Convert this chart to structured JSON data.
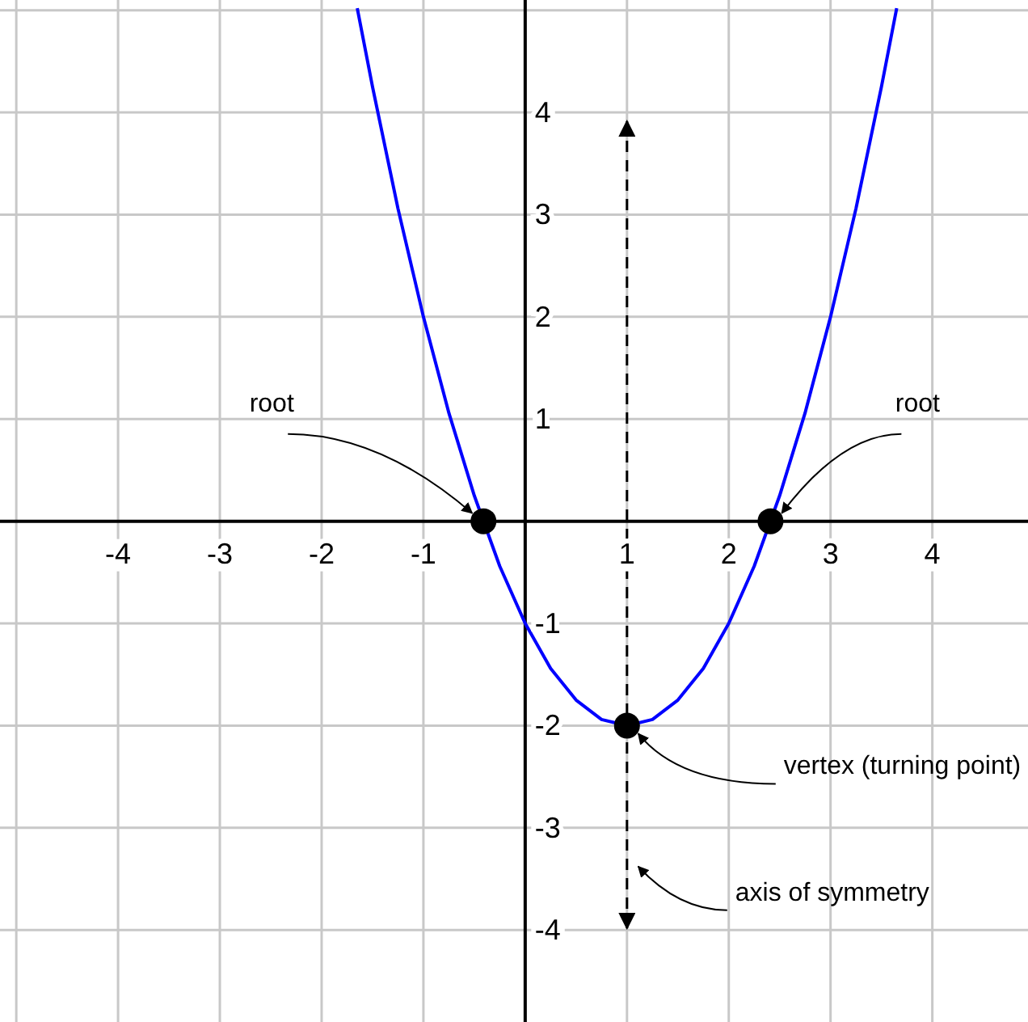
{
  "chart_data": {
    "type": "line",
    "xlim": [
      -5.16,
      4.94
    ],
    "ylim": [
      -4.9,
      5.1
    ],
    "xticks": [
      {
        "value": -5,
        "label": null
      },
      -4,
      -3,
      -2,
      -1,
      {
        "value": 0,
        "label": null
      },
      1,
      2,
      3,
      4
    ],
    "yticks": [
      -4,
      -3,
      -2,
      -1,
      {
        "value": 0,
        "label": null
      },
      1,
      2,
      3,
      4,
      {
        "value": 5,
        "label": null
      }
    ],
    "grid": true,
    "series": [
      {
        "color": "#0000ff",
        "marker": "none",
        "x": [
          -1.65,
          -1.5,
          -1.25,
          -1,
          -0.75,
          -0.5,
          -0.25,
          0,
          0.25,
          0.5,
          0.75,
          1,
          1.25,
          1.5,
          1.75,
          2,
          2.25,
          2.5,
          2.75,
          3,
          3.25,
          3.5,
          3.65
        ],
        "values": [
          5.02,
          4.25,
          3.06,
          2,
          1.06,
          0.25,
          -0.44,
          -1,
          -1.44,
          -1.75,
          -1.94,
          -2,
          -1.94,
          -1.75,
          -1.44,
          -1,
          -0.44,
          0.25,
          1.06,
          2,
          3.06,
          4.25,
          5.02
        ]
      },
      {
        "type": "scatter",
        "color": "#000000",
        "marker": "circle",
        "x": [
          -0.41,
          1,
          2.41
        ],
        "values": [
          0,
          -2,
          0
        ]
      }
    ],
    "ref_lines": [
      {
        "axis": "x",
        "value": 1,
        "color": "#000000",
        "line_style": "dashed"
      }
    ],
    "annotations": [
      {
        "text": "root",
        "x": -0.41,
        "y": 0
      },
      {
        "text": "root",
        "x": 2.41,
        "y": 0
      },
      {
        "text": "vertex (turning point)",
        "x": 1,
        "y": -2
      },
      {
        "text": "axis of symmetry",
        "x": 1,
        "y": -3.3
      }
    ]
  }
}
